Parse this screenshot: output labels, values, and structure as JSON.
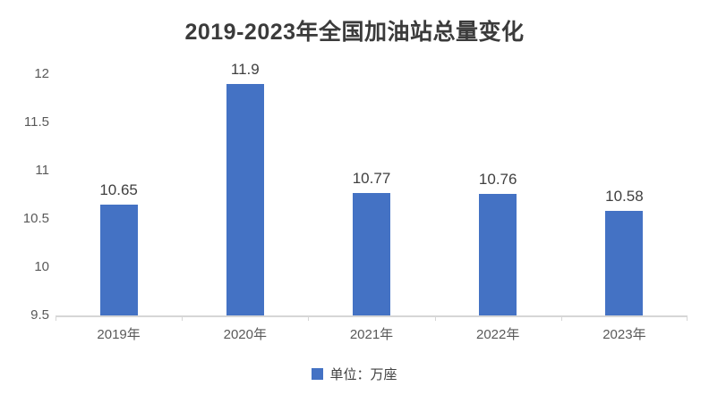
{
  "title": "2019-2023年全国加油站总量变化",
  "legend": {
    "label": "单位：万座",
    "swatch_color": "#4472C4"
  },
  "colors": {
    "bar": "#4472C4",
    "title_text": "#3B3B3B",
    "axis_text": "#595959",
    "data_label_text": "#404040",
    "axis_line": "#D6D6D6",
    "background": "#FFFFFF"
  },
  "chart_data": {
    "type": "bar",
    "categories": [
      "2019年",
      "2020年",
      "2021年",
      "2022年",
      "2023年"
    ],
    "values": [
      10.65,
      11.9,
      10.77,
      10.76,
      10.58
    ],
    "data_labels": [
      "10.65",
      "11.9",
      "10.77",
      "10.76",
      "10.58"
    ],
    "title": "2019-2023年全国加油站总量变化",
    "xlabel": "",
    "ylabel": "",
    "ylim": [
      9.5,
      12
    ],
    "ytick_step": 0.5,
    "ytick_labels": [
      "9.5",
      "10",
      "10.5",
      "11",
      "11.5",
      "12"
    ],
    "grid": false,
    "legend": [
      "单位：万座"
    ],
    "legend_position": "bottom",
    "bar_color": "#4472C4"
  }
}
